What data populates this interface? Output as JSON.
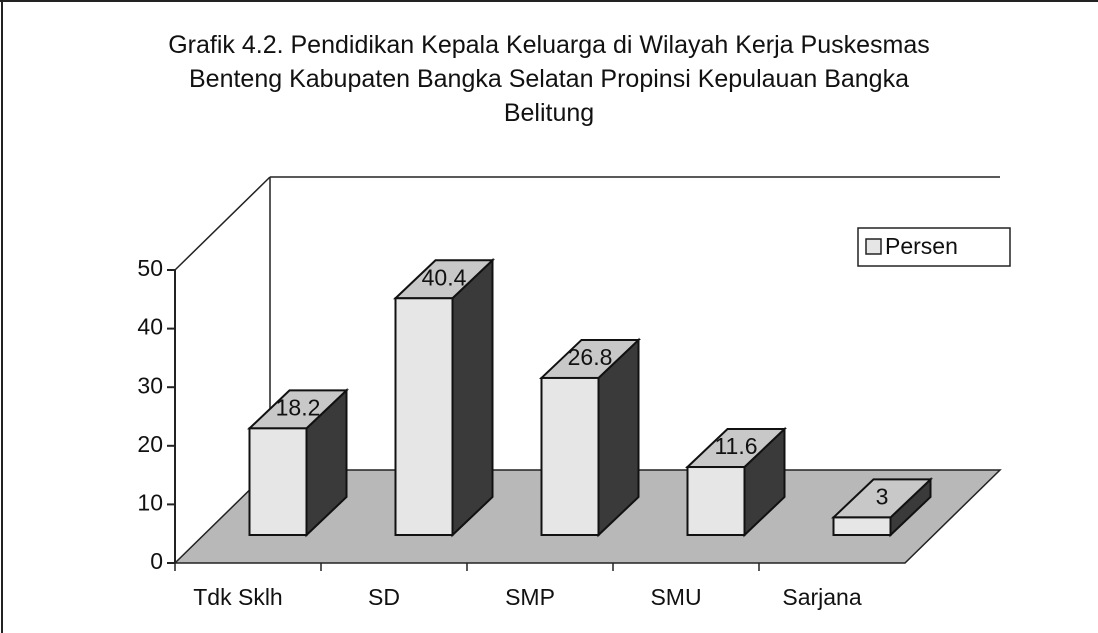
{
  "chart_data": {
    "type": "bar3d",
    "title": "Grafik 4.2. Pendidikan Kepala Keluarga di Wilayah Kerja Puskesmas Benteng Kabupaten Bangka Selatan Propinsi Kepulauan Bangka Belitung",
    "categories": [
      "Tdk Sklh",
      "SD",
      "SMP",
      "SMU",
      "Sarjana"
    ],
    "series": [
      {
        "name": "Persen",
        "color": "#e6e6e6",
        "values": [
          18.2,
          40.4,
          26.8,
          11.6,
          3
        ]
      }
    ],
    "ylim": [
      0,
      50
    ],
    "yticks": [
      0,
      10,
      20,
      30,
      40,
      50
    ],
    "legend": "upper right",
    "grid": false
  }
}
